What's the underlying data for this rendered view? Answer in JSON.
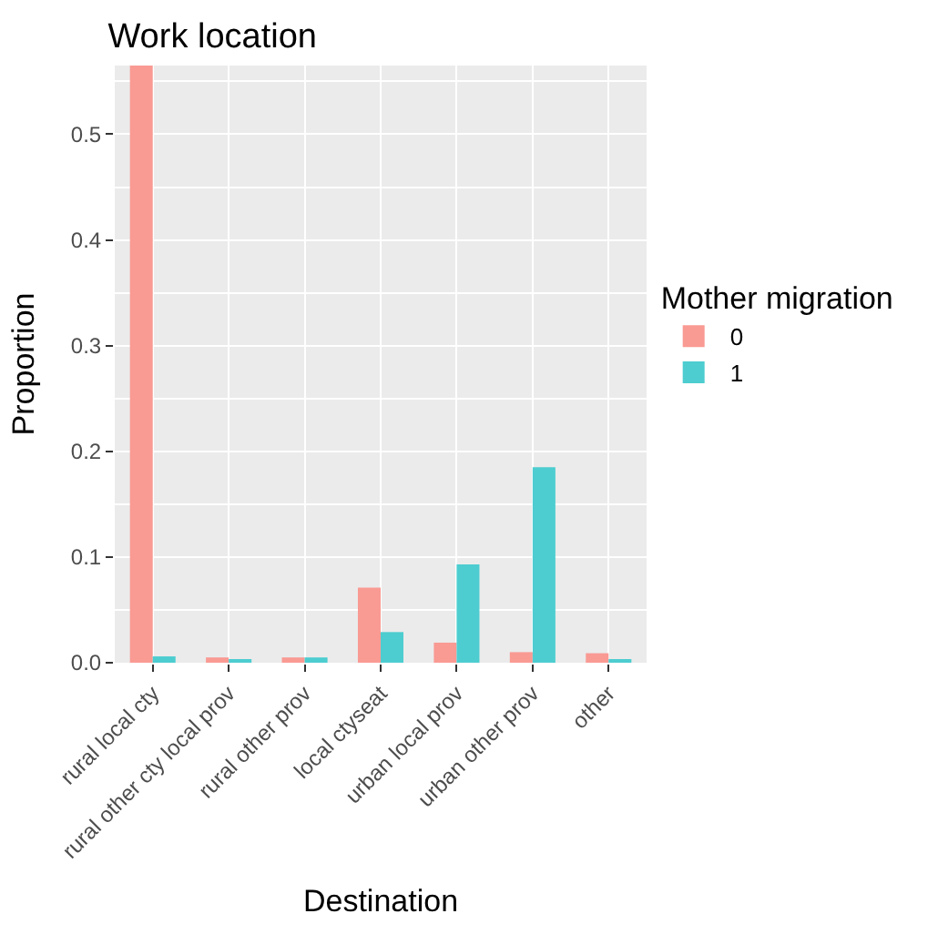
{
  "chart_data": {
    "type": "bar",
    "title": "Work location",
    "xlabel": "Destination",
    "ylabel": "Proportion",
    "legend_title": "Mother migration",
    "categories": [
      "rural local cty",
      "rural other cty local prov",
      "rural other prov",
      "local ctyseat",
      "urban local prov",
      "urban other prov",
      "other"
    ],
    "series": [
      {
        "name": "0",
        "color": "#f99a93",
        "values": [
          0.565,
          0.005,
          0.005,
          0.071,
          0.019,
          0.01,
          0.009
        ]
      },
      {
        "name": "1",
        "color": "#4dcdd0",
        "values": [
          0.006,
          0.002,
          0.005,
          0.029,
          0.093,
          0.185,
          0.002
        ]
      }
    ],
    "ylim": [
      0,
      0.565
    ],
    "yticks": [
      {
        "value": 0,
        "label": "0.0"
      },
      {
        "value": 0.1,
        "label": "0.1"
      },
      {
        "value": 0.2,
        "label": "0.2"
      },
      {
        "value": 0.3,
        "label": "0.3"
      },
      {
        "value": 0.4,
        "label": "0.4"
      },
      {
        "value": 0.5,
        "label": "0.5"
      }
    ],
    "grid": true,
    "legend": "right"
  }
}
